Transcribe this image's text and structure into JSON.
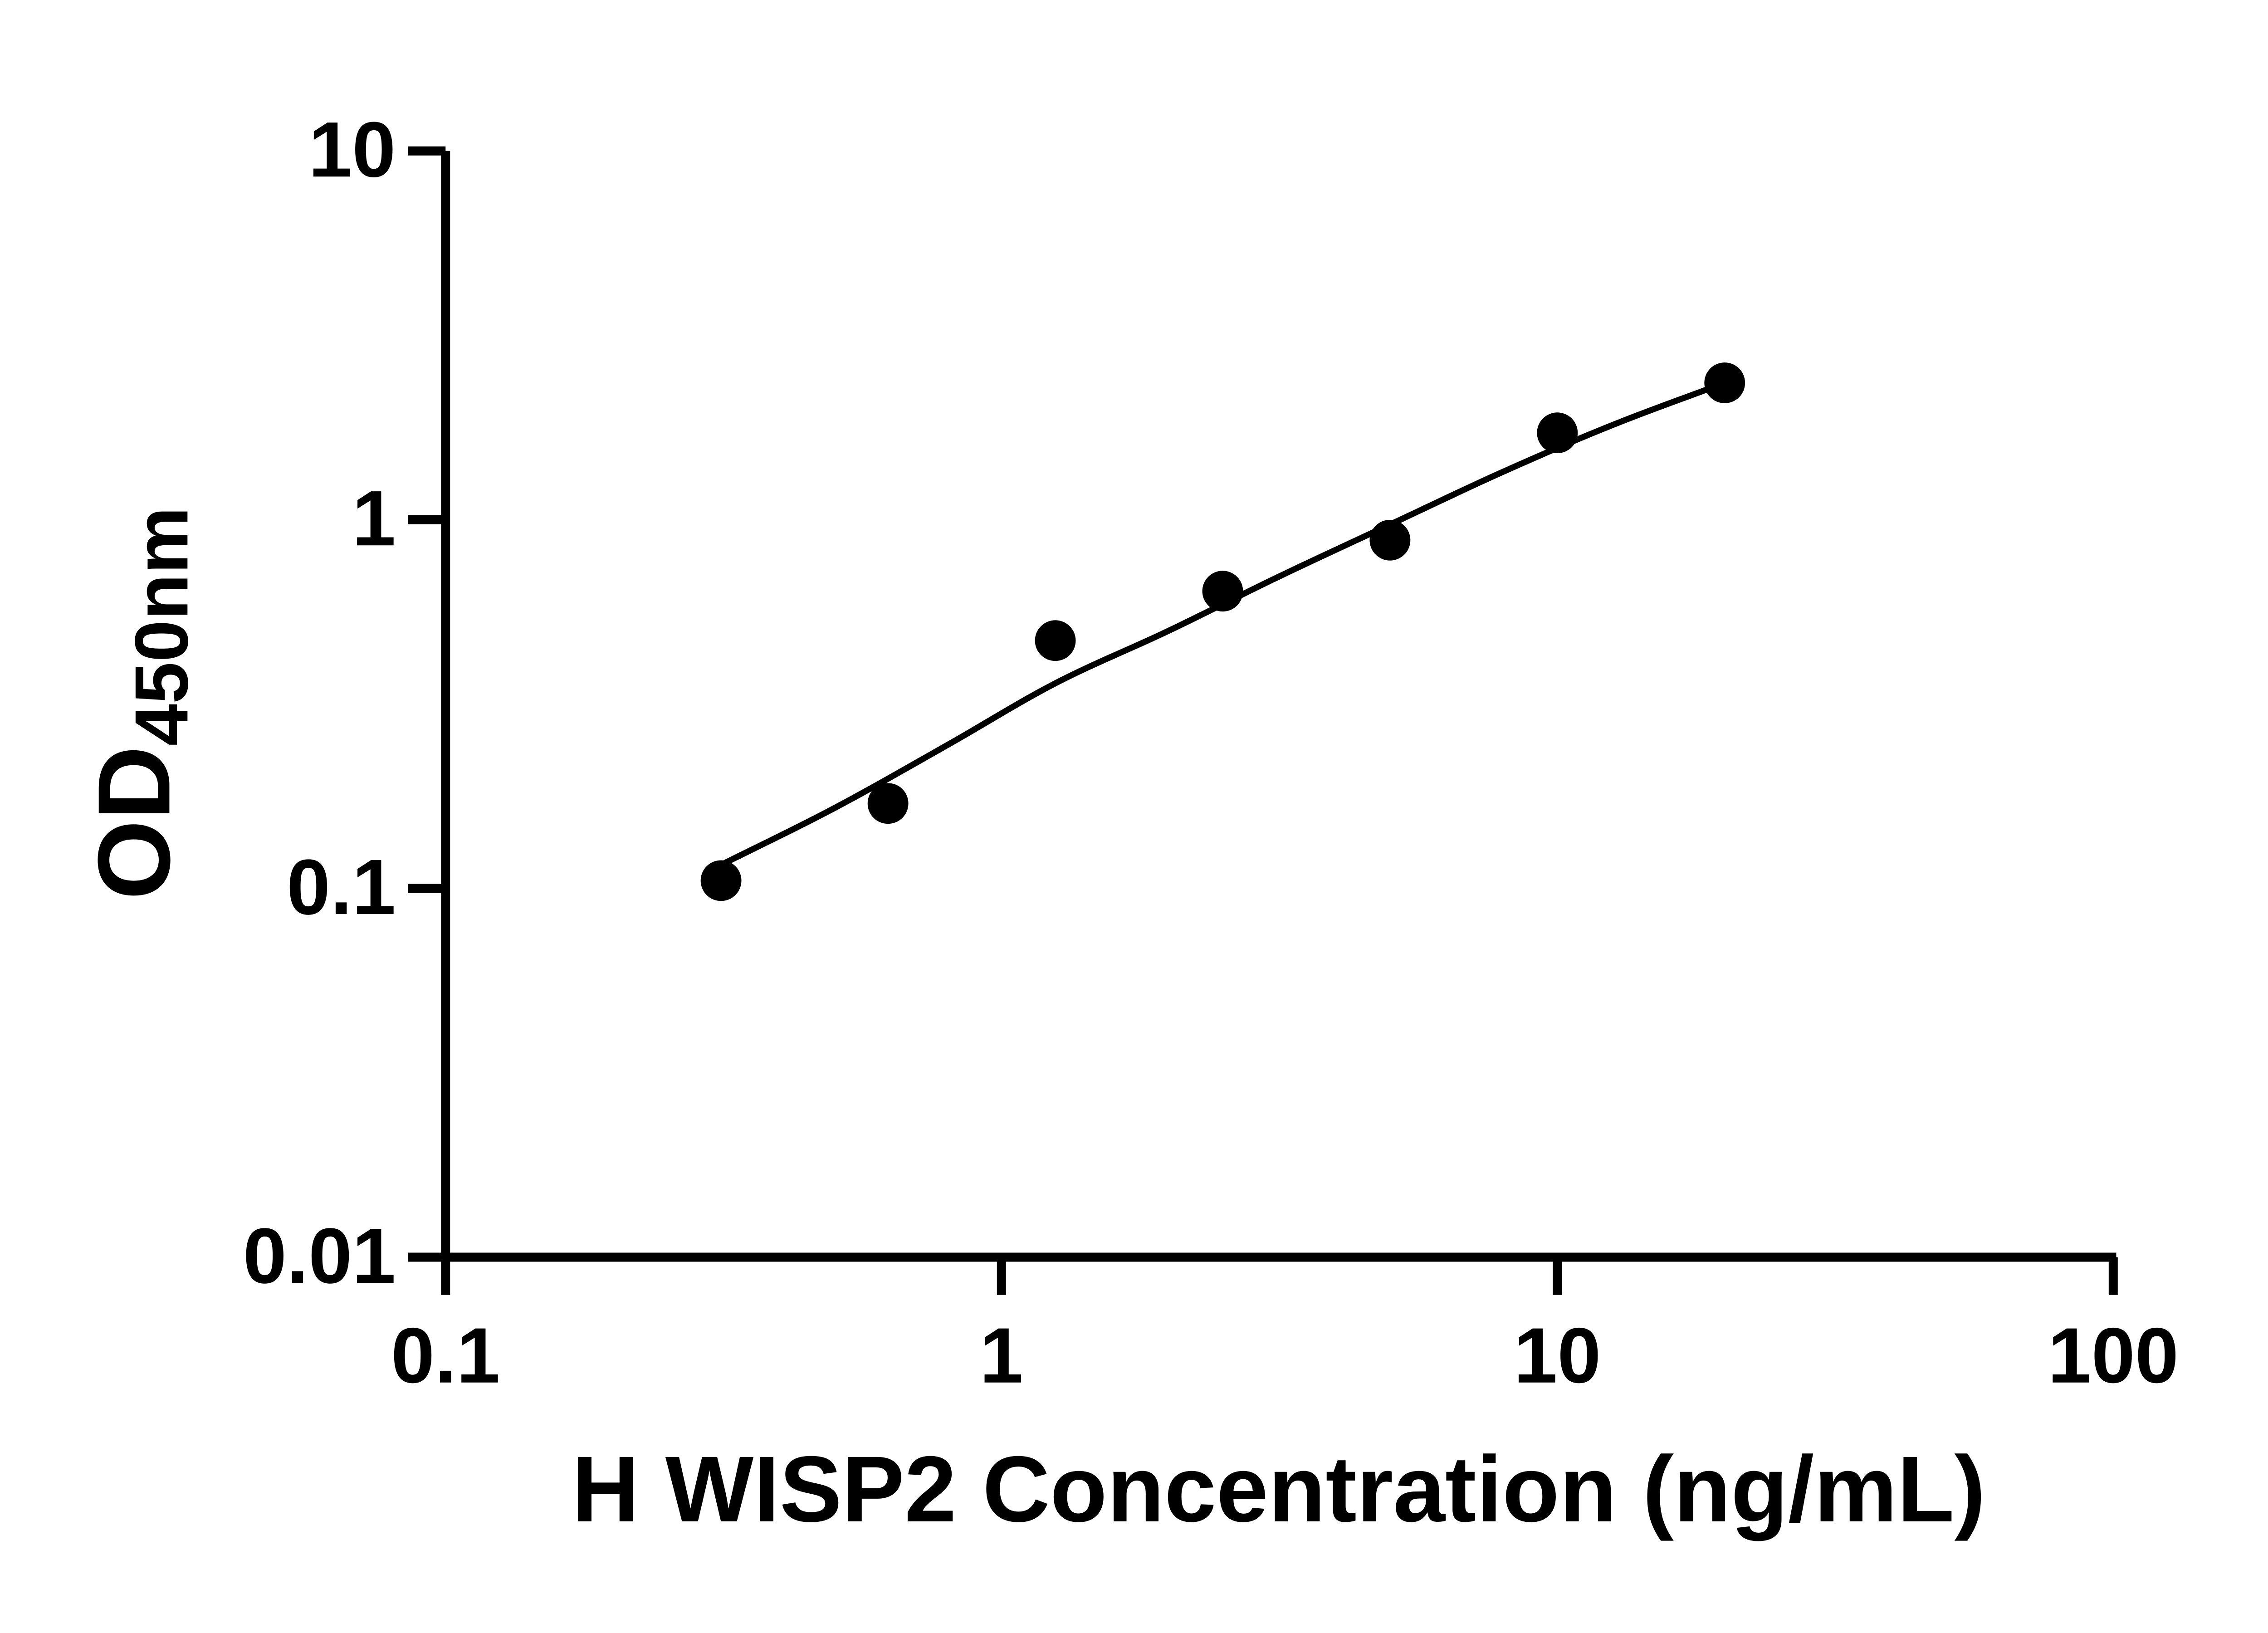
{
  "figure": {
    "background": "#ffffff",
    "ink_color": "#000000"
  },
  "chart_data": {
    "type": "scatter",
    "title": "",
    "xlabel": "H WISP2 Concentration (ng/mL)",
    "ylabel": "OD450nm",
    "ylabel_main": "OD",
    "ylabel_sub": "450nm",
    "x_scale": "log",
    "y_scale": "log",
    "xlim": [
      0.1,
      100
    ],
    "ylim": [
      0.01,
      10
    ],
    "x_ticks": [
      0.1,
      1,
      10,
      100
    ],
    "x_tick_labels": [
      "0.1",
      "1",
      "10",
      "100"
    ],
    "y_ticks": [
      0.01,
      0.1,
      1,
      10
    ],
    "y_tick_labels": [
      "0.01",
      "0.1",
      "1",
      "10"
    ],
    "grid": false,
    "legend": "none",
    "marker_color": "#000000",
    "line_color": "#000000",
    "points": {
      "x": [
        0.313,
        0.625,
        1.25,
        2.5,
        5,
        10,
        20
      ],
      "y": [
        0.105,
        0.17,
        0.47,
        0.64,
        0.88,
        1.72,
        2.35
      ]
    },
    "fit_curve": {
      "x": [
        0.31,
        0.5,
        0.8,
        1.25,
        2.0,
        3.15,
        5.0,
        8.0,
        12.5,
        20.0
      ],
      "y": [
        0.115,
        0.165,
        0.245,
        0.36,
        0.5,
        0.7,
        0.97,
        1.35,
        1.8,
        2.35
      ]
    }
  }
}
